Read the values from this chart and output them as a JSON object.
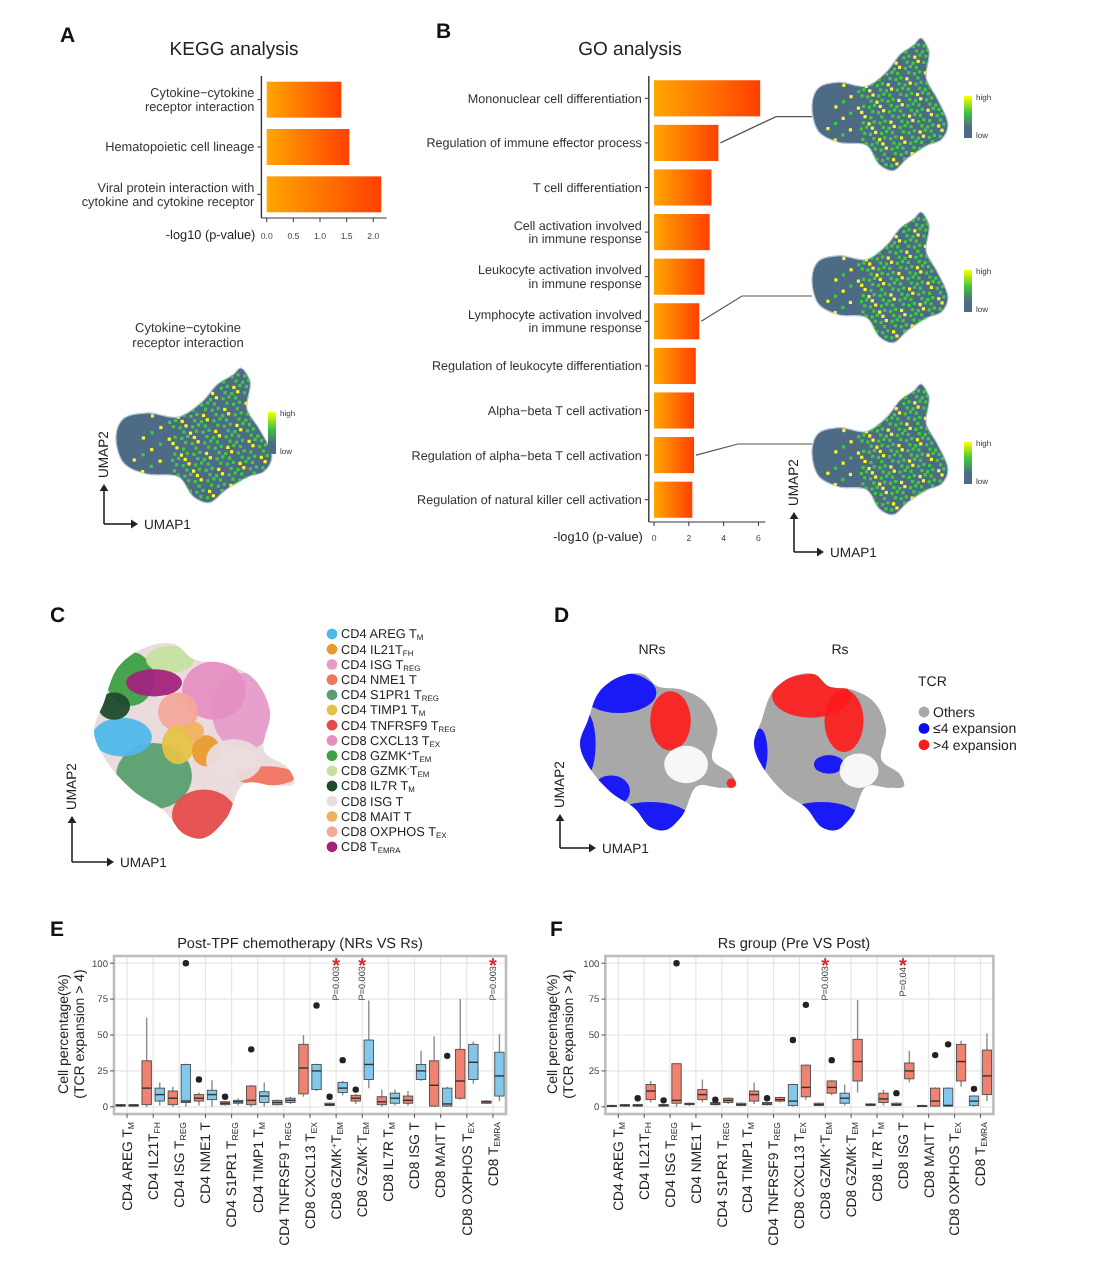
{
  "chart_data": [
    {
      "type": "bar",
      "orientation": "horizontal",
      "title": "KEGG analysis",
      "categories": [
        "Cytokine−cytokine\nreceptor interaction",
        "Hematopoietic cell lineage",
        "Viral protein interaction with\ncytokine and cytokine receptor"
      ],
      "values": [
        1.4,
        1.55,
        2.15
      ],
      "color": "#ff7300",
      "xlabel": "-log10 (p-value)",
      "xlim": [
        -0.1,
        2.25
      ],
      "xticks": [
        {
          "value": 0,
          "label": "0.0"
        },
        {
          "value": 0.5,
          "label": "0.5"
        },
        {
          "value": 1,
          "label": "1.0"
        },
        {
          "value": 1.5,
          "label": "1.5"
        },
        {
          "value": 2,
          "label": "2.0"
        }
      ],
      "annotations": [
        "A"
      ]
    },
    {
      "type": "other",
      "title": "Cytokine−cytokine\nreceptor interaction",
      "xlabel": "UMAP1",
      "ylabel": "UMAP2",
      "annotations": [
        "high",
        "low"
      ]
    },
    {
      "type": "bar",
      "orientation": "horizontal",
      "title": "GO analysis",
      "categories": [
        "Mononuclear cell differentiation",
        "Regulation of immune effector process",
        "T cell differentiation",
        "Cell activation involved\nin immune response",
        "Leukocyte activation involved\nin immune response",
        "Lymphocyte activation involved\nin immune response",
        "Regulation of leukocyte differentiation",
        "Alpha−beta T cell activation",
        "Regulation of alpha−beta T cell activation",
        "Regulation of natural killer cell activation"
      ],
      "values": [
        6.1,
        3.7,
        3.3,
        3.2,
        2.9,
        2.6,
        2.4,
        2.3,
        2.3,
        2.2
      ],
      "color": "#ff7300",
      "xlabel": "-log10 (p-value)",
      "xlim": [
        -0.3,
        6.4
      ],
      "xticks": [
        0,
        2,
        4,
        6
      ],
      "annotations": [
        "B"
      ]
    },
    {
      "type": "other",
      "xlabel": "UMAP1",
      "ylabel": "UMAP2",
      "annotations": [
        "high",
        "low",
        "high",
        "low",
        "high",
        "low"
      ]
    },
    {
      "type": "other",
      "categories": [
        "CD4 AREG T$_{M}$",
        "CD4 IL21T$_{FH}$",
        "CD4 ISG T$_{REG}$",
        "CD4 NME1 T",
        "CD4 S1PR1 T$_{REG}$",
        "CD4 TIMP1 T$_{M}$",
        "CD4 TNFRSF9 T$_{REG}$",
        "CD8 CXCL13 T$_{EX}$",
        "CD8 GZMK$^{+}$T$_{EM}$",
        "CD8 GZMK$^{-}$T$_{EM}$",
        "CD8 IL7R T$_{M}$",
        "CD8 ISG T",
        "CD8 MAIT T",
        "CD8 OXPHOS T$_{EX}$",
        "CD8 T$_{EMRA}$"
      ],
      "colors": [
        "#4fb9ea",
        "#e99a2c",
        "#e79cc9",
        "#f2735f",
        "#5b9f70",
        "#e6c244",
        "#e64b4b",
        "#e58fc1",
        "#3f9f45",
        "#c6e0a1",
        "#1d4a2c",
        "#eadcdc",
        "#f1b25f",
        "#f2a898",
        "#a2237c"
      ],
      "xlabel": "UMAP1",
      "ylabel": "UMAP2",
      "annotations": [
        "C"
      ]
    },
    {
      "type": "other",
      "categories": [
        "Others",
        "≤4 expansion",
        ">4 expansion"
      ],
      "colors": [
        "#a8a8a8",
        "#0a0aff",
        "#ff1a1a"
      ],
      "legend_title": "TCR",
      "xlabel": "UMAP1",
      "ylabel": "UMAP2",
      "annotations": [
        "D",
        "NRs",
        "Rs"
      ]
    },
    {
      "type": "box",
      "title": "Post-TPF chemotherapy (NRs VS Rs)",
      "ylabel": "Cell percentage(%)\n(TCR expansion > 4)",
      "categories": [
        "CD4 AREG T$_{M}$",
        "CD4 IL21T$_{FH}$",
        "CD4 ISG T$_{REG}$",
        "CD4 NME1 T",
        "CD4 S1PR1 T$_{REG}$",
        "CD4 TIMP1 T$_{M}$",
        "CD4 TNFRSF9 T$_{REG}$",
        "CD8 CXCL13 T$_{EX}$",
        "CD8 GZMK$^{+}$T$_{EM}$",
        "CD8 GZMK$^{-}$T$_{EM}$",
        "CD8 IL7R T$_{M}$",
        "CD8 ISG T",
        "CD8 MAIT T",
        "CD8 OXPHOS T$_{EX}$",
        "CD8 T$_{EMRA}$"
      ],
      "series": [
        {
          "color": "#f08272",
          "boxes": [
            {
              "low": 0,
              "q1": 0.5,
              "median": 1,
              "q3": 1.5,
              "high": 2
            },
            {
              "low": 0,
              "q1": 1.5,
              "median": 13,
              "q3": 32,
              "high": 62
            },
            {
              "low": 0,
              "q1": 1.5,
              "median": 6,
              "q3": 11,
              "high": 14
            },
            {
              "low": 1,
              "q1": 4,
              "median": 6,
              "q3": 8.5,
              "high": 10,
              "outliers": [
                19
              ]
            },
            {
              "low": 1,
              "q1": 1.5,
              "median": 2.5,
              "q3": 3.5,
              "high": 4,
              "outliers": [
                7
              ]
            },
            {
              "low": 0,
              "q1": 1.5,
              "median": 4.5,
              "q3": 14.5,
              "high": 15,
              "outliers": [
                40
              ]
            },
            {
              "low": 1,
              "q1": 1.5,
              "median": 3,
              "q3": 4.5,
              "high": 5
            },
            {
              "low": 7,
              "q1": 9,
              "median": 27,
              "q3": 43.5,
              "high": 50
            },
            {
              "low": 0.5,
              "q1": 1,
              "median": 1.5,
              "q3": 2.5,
              "high": 3,
              "outliers": [
                7
              ]
            },
            {
              "low": 2,
              "q1": 4,
              "median": 6,
              "q3": 8,
              "high": 9,
              "outliers": [
                12
              ]
            },
            {
              "low": 0,
              "q1": 1.5,
              "median": 3.5,
              "q3": 7,
              "high": 12
            },
            {
              "low": 1,
              "q1": 2.5,
              "median": 4.5,
              "q3": 7.5,
              "high": 11
            },
            {
              "low": 0,
              "q1": 0.5,
              "median": 15,
              "q3": 32,
              "high": 49
            },
            {
              "low": 5,
              "q1": 6,
              "median": 18,
              "q3": 40,
              "high": 75
            },
            {
              "low": 2,
              "q1": 2.5,
              "median": 3.5,
              "q3": 4,
              "high": 4.5
            }
          ]
        },
        {
          "color": "#82c8ec",
          "boxes": [
            {
              "low": 0,
              "q1": 0.5,
              "median": 1,
              "q3": 1.5,
              "high": 2
            },
            {
              "low": 1,
              "q1": 4,
              "median": 8.5,
              "q3": 13,
              "high": 17
            },
            {
              "low": 0,
              "q1": 3,
              "median": 4,
              "q3": 29.5,
              "high": 30,
              "outliers": [
                100
              ]
            },
            {
              "low": 0,
              "q1": 5,
              "median": 8.5,
              "q3": 11.5,
              "high": 18.5
            },
            {
              "low": 1,
              "q1": 2.5,
              "median": 3.5,
              "q3": 4.5,
              "high": 6
            },
            {
              "low": 0,
              "q1": 3,
              "median": 7.5,
              "q3": 10.5,
              "high": 17
            },
            {
              "low": 2,
              "q1": 3,
              "median": 4.5,
              "q3": 6,
              "high": 7
            },
            {
              "low": 11,
              "q1": 12,
              "median": 25,
              "q3": 29.5,
              "high": 30,
              "outliers": [
                70.5
              ]
            },
            {
              "low": 8,
              "q1": 10,
              "median": 13,
              "q3": 17,
              "high": 18,
              "outliers": [
                32.5
              ]
            },
            {
              "low": 13,
              "q1": 19,
              "median": 29.5,
              "q3": 46.5,
              "high": 74
            },
            {
              "low": 1,
              "q1": 2.5,
              "median": 6,
              "q3": 9.5,
              "high": 12
            },
            {
              "low": 18,
              "q1": 19,
              "median": 25,
              "q3": 29.5,
              "high": 39
            },
            {
              "low": 0,
              "q1": 0.5,
              "median": 2,
              "q3": 13,
              "high": 14,
              "outliers": [
                35.5
              ]
            },
            {
              "low": 16,
              "q1": 19,
              "median": 31,
              "q3": 43.5,
              "high": 45.5
            },
            {
              "low": 4,
              "q1": 7.5,
              "median": 21.5,
              "q3": 38,
              "high": 50.5
            }
          ]
        }
      ],
      "ylim": [
        -5,
        105
      ],
      "yticks": [
        0,
        25,
        50,
        75,
        100
      ],
      "grid": true,
      "annotations": [
        "E",
        "*",
        "P=0.003",
        "*",
        "P=0.003",
        "*",
        "P=0.003"
      ]
    },
    {
      "type": "box",
      "title": "Rs group (Pre VS Post)",
      "ylabel": "Cell percentage(%)\n(TCR expansion > 4)",
      "categories": [
        "CD4 AREG T$_{M}$",
        "CD4 IL21T$_{FH}$",
        "CD4 ISG T$_{REG}$",
        "CD4 NME1 T",
        "CD4 S1PR1 T$_{REG}$",
        "CD4 TIMP1 T$_{M}$",
        "CD4 TNFRSF9 T$_{REG}$",
        "CD8 CXCL13 T$_{EX}$",
        "CD8 GZMK$^{+}$T$_{EM}$",
        "CD8 GZMK$^{-}$T$_{EM}$",
        "CD8 IL7R T$_{M}$",
        "CD8 ISG T",
        "CD8 MAIT T",
        "CD8 OXPHOS T$_{EX}$",
        "CD8 T$_{EMRA}$"
      ],
      "series": [
        {
          "color": "#82c8ec",
          "boxes": [
            {
              "low": 0,
              "q1": 0.3,
              "median": 0.5,
              "q3": 1,
              "high": 1.5
            },
            {
              "low": 0,
              "q1": 0.5,
              "median": 1,
              "q3": 1.5,
              "high": 2,
              "outliers": [
                6
              ]
            },
            {
              "low": 0,
              "q1": 0.5,
              "median": 1,
              "q3": 1.5,
              "high": 2,
              "outliers": [
                4.5
              ]
            },
            {
              "low": 0.5,
              "q1": 1.5,
              "median": 2,
              "q3": 2.5,
              "high": 3
            },
            {
              "low": 1,
              "q1": 1.5,
              "median": 2,
              "q3": 3,
              "high": 3.5,
              "outliers": [
                5
              ]
            },
            {
              "low": 0.5,
              "q1": 1,
              "median": 1.5,
              "q3": 2.5,
              "high": 3
            },
            {
              "low": 1,
              "q1": 1.5,
              "median": 2,
              "q3": 3,
              "high": 3.5,
              "outliers": [
                6
              ]
            },
            {
              "low": 0,
              "q1": 1,
              "median": 4,
              "q3": 15.5,
              "high": 16,
              "outliers": [
                46.5
              ]
            },
            {
              "low": 0.5,
              "q1": 1,
              "median": 1.5,
              "q3": 2.5,
              "high": 3
            },
            {
              "low": 1,
              "q1": 2.5,
              "median": 6,
              "q3": 9.5,
              "high": 15.5
            },
            {
              "low": 0.5,
              "q1": 1,
              "median": 1.5,
              "q3": 2,
              "high": 2.5
            },
            {
              "low": 0.5,
              "q1": 1,
              "median": 1.5,
              "q3": 2.5,
              "high": 3,
              "outliers": [
                9.5
              ]
            },
            {
              "low": 0,
              "q1": 0.2,
              "median": 0.5,
              "q3": 1,
              "high": 1.5
            },
            {
              "low": 0,
              "q1": 0.5,
              "median": 1,
              "q3": 13,
              "high": 13.5,
              "outliers": [
                43.5
              ]
            },
            {
              "low": 0,
              "q1": 1,
              "median": 4,
              "q3": 7.5,
              "high": 8,
              "outliers": [
                12.5
              ]
            }
          ]
        },
        {
          "color": "#f08272",
          "boxes": [
            {
              "low": 0,
              "q1": 0.5,
              "median": 1,
              "q3": 1.5,
              "high": 2
            },
            {
              "low": 3,
              "q1": 5,
              "median": 11,
              "q3": 15.5,
              "high": 18
            },
            {
              "low": 0,
              "q1": 2.5,
              "median": 4.5,
              "q3": 30,
              "high": 30.5,
              "outliers": [
                100
              ]
            },
            {
              "low": 3,
              "q1": 5,
              "median": 8.5,
              "q3": 12,
              "high": 19
            },
            {
              "low": 2,
              "q1": 3,
              "median": 4.5,
              "q3": 6,
              "high": 6.5
            },
            {
              "low": 2,
              "q1": 4,
              "median": 8.5,
              "q3": 11,
              "high": 17
            },
            {
              "low": 3,
              "q1": 4,
              "median": 5,
              "q3": 6.5,
              "high": 7
            },
            {
              "low": 5,
              "q1": 7,
              "median": 13.5,
              "q3": 29,
              "high": 29.5,
              "outliers": [
                71
              ]
            },
            {
              "low": 8,
              "q1": 9.5,
              "median": 13.5,
              "q3": 18,
              "high": 18.5,
              "outliers": [
                32.5
              ]
            },
            {
              "low": 10,
              "q1": 18,
              "median": 31.5,
              "q3": 47,
              "high": 74.5
            },
            {
              "low": 1,
              "q1": 3,
              "median": 5.5,
              "q3": 9.5,
              "high": 12
            },
            {
              "low": 17,
              "q1": 19.5,
              "median": 25,
              "q3": 30.5,
              "high": 39
            },
            {
              "low": 0,
              "q1": 0.5,
              "median": 4,
              "q3": 13,
              "high": 13.5,
              "outliers": [
                36
              ]
            },
            {
              "low": 14,
              "q1": 18,
              "median": 31.5,
              "q3": 43.5,
              "high": 46
            },
            {
              "low": 4,
              "q1": 8.5,
              "median": 21.5,
              "q3": 39.5,
              "high": 51
            }
          ]
        }
      ],
      "ylim": [
        -5,
        105
      ],
      "yticks": [
        0,
        25,
        50,
        75,
        100
      ],
      "grid": true,
      "annotations": [
        "F",
        "*",
        "P=0.003",
        "*",
        "P=0.04"
      ]
    }
  ]
}
